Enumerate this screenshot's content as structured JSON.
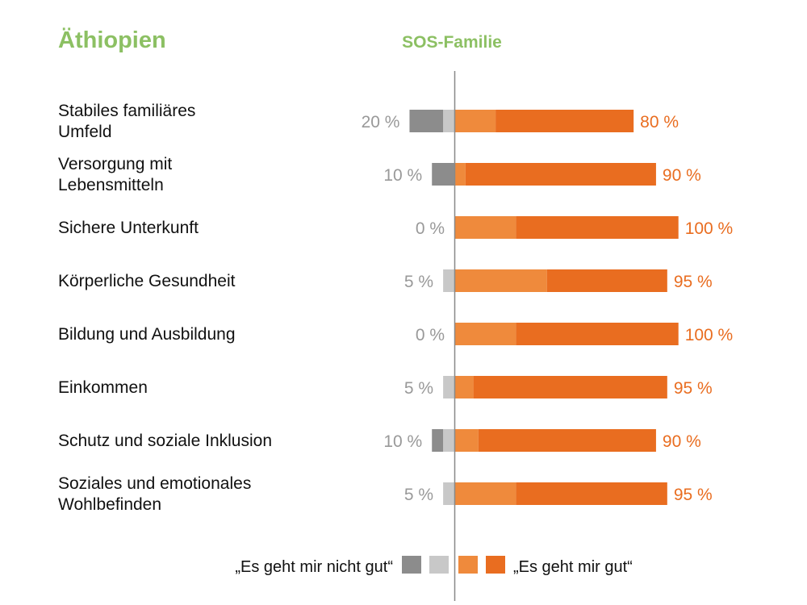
{
  "header": {
    "title": "Äthiopien",
    "subtitle": "SOS-Familie"
  },
  "chart_data": {
    "type": "bar",
    "orientation": "horizontal-diverging-stacked",
    "categories": [
      [
        "Stabiles familiäres",
        "Umfeld"
      ],
      [
        "Versorgung mit",
        "Lebensmitteln"
      ],
      [
        "Sichere Unterkunft"
      ],
      [
        "Körperliche Gesundheit"
      ],
      [
        "Bildung und Ausbildung"
      ],
      [
        "Einkommen"
      ],
      [
        "Schutz und soziale Inklusion"
      ],
      [
        "Soziales und emotionales",
        "Wohlbefinden"
      ]
    ],
    "series": [
      {
        "side": "negative",
        "color": "#8c8c8c",
        "values": [
          15,
          10,
          0,
          0,
          0,
          0,
          5,
          0
        ]
      },
      {
        "side": "negative",
        "color": "#c8c8c8",
        "values": [
          5,
          0,
          0,
          5,
          0,
          5,
          5,
          5
        ]
      },
      {
        "side": "positive",
        "color": "#ef8a3c",
        "values": [
          18.4,
          5,
          27.5,
          41.3,
          27.5,
          8.5,
          10.7,
          27.5
        ]
      },
      {
        "side": "positive",
        "color": "#e96d20",
        "values": [
          61.6,
          85,
          72.5,
          53.7,
          72.5,
          86.5,
          79.3,
          67.5
        ]
      }
    ],
    "negative_labels": [
      "20 %",
      "10 %",
      "0 %",
      "5 %",
      "0 %",
      "5 %",
      "10 %",
      "5 %"
    ],
    "positive_labels": [
      "80 %",
      "90 %",
      "100 %",
      "95 %",
      "100 %",
      "95 %",
      "90 %",
      "95 %"
    ],
    "legend": {
      "negative": "„Es geht mir nicht gut“",
      "positive": "„Es geht mir gut“",
      "placement": "bottom"
    },
    "xlim": [
      -100,
      100
    ]
  }
}
